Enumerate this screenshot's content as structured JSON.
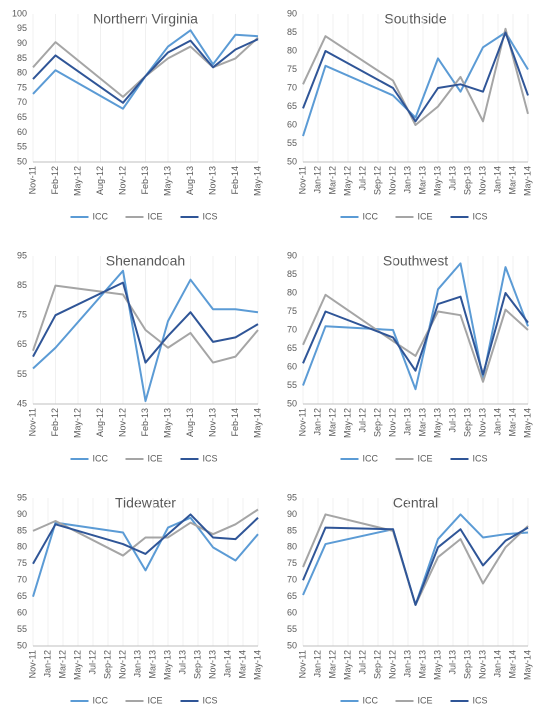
{
  "chart_data": [
    {
      "type": "line",
      "title": "Northern Virginia",
      "x": [
        "Nov-11",
        "Feb-12",
        "Nov-12",
        "Feb-13",
        "May-13",
        "Aug-13",
        "Nov-13",
        "Feb-14",
        "May-14"
      ],
      "xticks": [
        "Nov-11",
        "Feb-12",
        "May-12",
        "Aug-12",
        "Nov-12",
        "Feb-13",
        "May-13",
        "Aug-13",
        "Nov-13",
        "Feb-14",
        "May-14"
      ],
      "ylim": [
        50,
        100
      ],
      "yticks": [
        50,
        55,
        60,
        65,
        70,
        75,
        80,
        85,
        90,
        95,
        100
      ],
      "grid": false,
      "series": [
        {
          "name": "ICC",
          "color": "#5b9bd5",
          "values": [
            73,
            81,
            68,
            79,
            89,
            94.5,
            83,
            93,
            92.5
          ]
        },
        {
          "name": "ICE",
          "color": "#a5a5a5",
          "values": [
            82,
            90.5,
            72,
            79,
            85,
            89,
            82,
            85,
            92
          ]
        },
        {
          "name": "ICS",
          "color": "#2f5597",
          "values": [
            78,
            86,
            70,
            79,
            87,
            91,
            82,
            88,
            91.5
          ]
        }
      ]
    },
    {
      "type": "line",
      "title": "Southside",
      "x": [
        "Nov-11",
        "Feb-12",
        "Nov-12",
        "Feb-13",
        "May-13",
        "Aug-13",
        "Nov-13",
        "Feb-14",
        "May-14"
      ],
      "xticks": [
        "Nov-11",
        "Jan-12",
        "Mar-12",
        "May-12",
        "Jul-12",
        "Sep-12",
        "Nov-12",
        "Jan-13",
        "Mar-13",
        "May-13",
        "Jul-13",
        "Sep-13",
        "Nov-13",
        "Jan-14",
        "Mar-14",
        "May-14"
      ],
      "ylim": [
        50,
        90
      ],
      "yticks": [
        50,
        55,
        60,
        65,
        70,
        75,
        80,
        85,
        90
      ],
      "grid": false,
      "series": [
        {
          "name": "ICC",
          "color": "#5b9bd5",
          "values": [
            57,
            76,
            68,
            62,
            78,
            69,
            81,
            85,
            75
          ]
        },
        {
          "name": "ICE",
          "color": "#a5a5a5",
          "values": [
            71,
            84,
            72,
            60,
            65,
            73,
            61,
            86,
            63
          ]
        },
        {
          "name": "ICS",
          "color": "#2f5597",
          "values": [
            64.5,
            80,
            70,
            61,
            70,
            71,
            69,
            85,
            68
          ]
        }
      ]
    },
    {
      "type": "line",
      "title": "Shenandoah",
      "x": [
        "Nov-11",
        "Feb-12",
        "Nov-12",
        "Feb-13",
        "May-13",
        "Aug-13",
        "Nov-13",
        "Feb-14",
        "May-14"
      ],
      "xticks": [
        "Nov-11",
        "Feb-12",
        "May-12",
        "Aug-12",
        "Nov-12",
        "Feb-13",
        "May-13",
        "Aug-13",
        "Nov-13",
        "Feb-14",
        "May-14"
      ],
      "ylim": [
        45,
        95
      ],
      "yticks": [
        45,
        55,
        65,
        75,
        85,
        95
      ],
      "grid": false,
      "series": [
        {
          "name": "ICC",
          "color": "#5b9bd5",
          "values": [
            57,
            64,
            90,
            46,
            73,
            87,
            77,
            77,
            76
          ]
        },
        {
          "name": "ICE",
          "color": "#a5a5a5",
          "values": [
            63,
            85,
            82,
            70,
            64,
            69,
            59,
            61,
            70
          ]
        },
        {
          "name": "ICS",
          "color": "#2f5597",
          "values": [
            61,
            75,
            86,
            59,
            68,
            76,
            66,
            67.5,
            72
          ]
        }
      ]
    },
    {
      "type": "line",
      "title": "Southwest",
      "x": [
        "Nov-11",
        "Feb-12",
        "Nov-12",
        "Feb-13",
        "May-13",
        "Aug-13",
        "Nov-13",
        "Feb-14",
        "May-14"
      ],
      "xticks": [
        "Nov-11",
        "Jan-12",
        "Mar-12",
        "May-12",
        "Jul-12",
        "Sep-12",
        "Nov-12",
        "Jan-13",
        "Mar-13",
        "May-13",
        "Jul-13",
        "Sep-13",
        "Nov-13",
        "Jan-14",
        "Mar-14",
        "May-14"
      ],
      "ylim": [
        50,
        90
      ],
      "yticks": [
        50,
        55,
        60,
        65,
        70,
        75,
        80,
        85,
        90
      ],
      "grid": false,
      "series": [
        {
          "name": "ICC",
          "color": "#5b9bd5",
          "values": [
            55,
            71,
            70,
            54,
            81,
            88,
            57,
            87,
            71
          ]
        },
        {
          "name": "ICE",
          "color": "#a5a5a5",
          "values": [
            66,
            79.5,
            67,
            63,
            75,
            74,
            56,
            75.5,
            70
          ]
        },
        {
          "name": "ICS",
          "color": "#2f5597",
          "values": [
            61,
            75,
            68,
            59,
            77,
            79,
            58,
            80,
            72
          ]
        }
      ]
    },
    {
      "type": "line",
      "title": "Tidewater",
      "x": [
        "Nov-11",
        "Feb-12",
        "Nov-12",
        "Feb-13",
        "May-13",
        "Aug-13",
        "Nov-13",
        "Feb-14",
        "May-14"
      ],
      "xticks": [
        "Nov-11",
        "Jan-12",
        "Mar-12",
        "May-12",
        "Jul-12",
        "Sep-12",
        "Nov-12",
        "Jan-13",
        "Mar-13",
        "May-13",
        "Jul-13",
        "Sep-13",
        "Nov-13",
        "Jan-14",
        "Mar-14",
        "May-14"
      ],
      "ylim": [
        50,
        95
      ],
      "yticks": [
        50,
        55,
        60,
        65,
        70,
        75,
        80,
        85,
        90,
        95
      ],
      "grid": false,
      "series": [
        {
          "name": "ICC",
          "color": "#5b9bd5",
          "values": [
            65,
            87.5,
            84.5,
            73,
            86,
            89,
            80,
            76,
            84
          ]
        },
        {
          "name": "ICE",
          "color": "#a5a5a5",
          "values": [
            85,
            88,
            77.5,
            83,
            83,
            87.5,
            84,
            87,
            91.5
          ]
        },
        {
          "name": "ICS",
          "color": "#2f5597",
          "values": [
            75,
            87,
            81,
            78,
            84,
            90,
            83,
            82.5,
            89
          ]
        }
      ]
    },
    {
      "type": "line",
      "title": "Central",
      "x": [
        "Nov-11",
        "Feb-12",
        "Nov-12",
        "Feb-13",
        "May-13",
        "Aug-13",
        "Nov-13",
        "Feb-14",
        "May-14"
      ],
      "xticks": [
        "Nov-11",
        "Jan-12",
        "Mar-12",
        "May-12",
        "Jul-12",
        "Sep-12",
        "Nov-12",
        "Jan-13",
        "Mar-13",
        "May-13",
        "Jul-13",
        "Sep-13",
        "Nov-13",
        "Jan-14",
        "Mar-14",
        "May-14"
      ],
      "ylim": [
        50,
        95
      ],
      "yticks": [
        50,
        55,
        60,
        65,
        70,
        75,
        80,
        85,
        90,
        95
      ],
      "grid": false,
      "series": [
        {
          "name": "ICC",
          "color": "#5b9bd5",
          "values": [
            65.5,
            81,
            85.5,
            62.5,
            82.5,
            90,
            83,
            84,
            84.5
          ]
        },
        {
          "name": "ICE",
          "color": "#a5a5a5",
          "values": [
            74,
            90,
            85,
            62.5,
            77,
            82.5,
            69,
            80,
            86.5
          ]
        },
        {
          "name": "ICS",
          "color": "#2f5597",
          "values": [
            70,
            86,
            85.5,
            62.5,
            80,
            85.5,
            74.5,
            82,
            86
          ]
        }
      ]
    }
  ]
}
